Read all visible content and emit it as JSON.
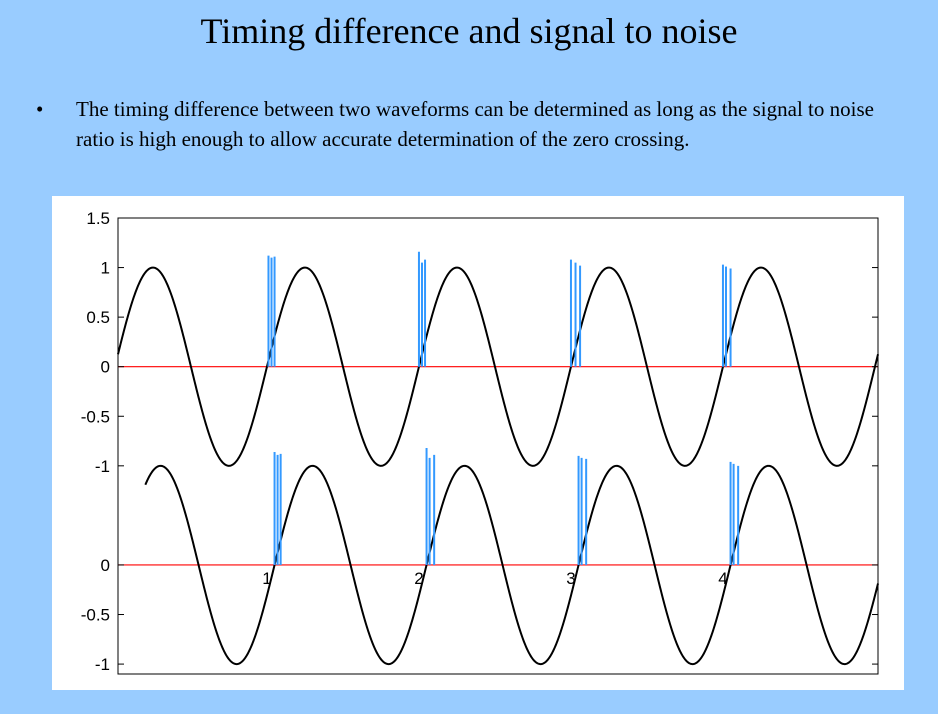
{
  "slide": {
    "title": "Timing difference and signal to noise",
    "bullet": "•",
    "bullet_text": "The timing difference between two waveforms can be determined as long as the signal to noise ratio is high enough to allow accurate determination of the zero crossing."
  },
  "colors": {
    "background": "#99ccff",
    "waveform": "#000000",
    "zero_line": "#ff0000",
    "noise_spikes": "#3399ff"
  },
  "chart_data": {
    "type": "line",
    "title": "",
    "xlabel": "",
    "ylabel": "",
    "grid": false,
    "xlim": [
      -0.98,
      4.02
    ],
    "ylim": [
      -3.1,
      1.5
    ],
    "upper_axis_ticks": [
      {
        "label": "1.5",
        "value": 1.5
      },
      {
        "label": "1",
        "value": 1
      },
      {
        "label": "0.5",
        "value": 0.5
      },
      {
        "label": "0",
        "value": 0
      },
      {
        "label": "-0.5",
        "value": -0.5
      },
      {
        "label": "-1",
        "value": -1
      }
    ],
    "lower_axis_ticks": [
      {
        "label": "0",
        "value": 0
      },
      {
        "label": "-0.5",
        "value": -0.5
      },
      {
        "label": "-1",
        "value": -1
      }
    ],
    "x_tick_labels": [
      {
        "label": "1",
        "value": 0
      },
      {
        "label": "2",
        "value": 1
      },
      {
        "label": "3",
        "value": 2
      },
      {
        "label": "4",
        "value": 3
      }
    ],
    "series": [
      {
        "role": "upper waveform",
        "baseline": 0,
        "amplitude": 1,
        "x_start": -0.98,
        "x_end": 4.02,
        "period": 1,
        "zero_crossings": [
          0,
          1,
          2,
          3,
          4
        ]
      },
      {
        "role": "lower waveform (delayed)",
        "baseline": -2,
        "amplitude": 1,
        "x_start": -0.8,
        "x_end": 4.02,
        "period": 1,
        "time_shift": 0.05,
        "zero_crossings": [
          0.05,
          1.05,
          2.05,
          3.05
        ]
      }
    ],
    "noise_spikes": [
      {
        "baseline": 0,
        "x": [
          0.01,
          0.03,
          0.05
        ],
        "heights": [
          1.12,
          1.1,
          1.11
        ]
      },
      {
        "baseline": 0,
        "x": [
          1.0,
          1.02,
          1.04
        ],
        "heights": [
          1.16,
          1.05,
          1.08
        ]
      },
      {
        "baseline": 0,
        "x": [
          2.0,
          2.03,
          2.06
        ],
        "heights": [
          1.08,
          1.05,
          1.02
        ]
      },
      {
        "baseline": 0,
        "x": [
          3.0,
          3.02,
          3.05
        ],
        "heights": [
          1.03,
          1.01,
          0.99
        ]
      },
      {
        "baseline": -2,
        "x": [
          0.05,
          0.07,
          0.09
        ],
        "heights": [
          1.14,
          1.11,
          1.12
        ]
      },
      {
        "baseline": -2,
        "x": [
          1.05,
          1.07,
          1.1
        ],
        "heights": [
          1.18,
          1.08,
          1.11
        ]
      },
      {
        "baseline": -2,
        "x": [
          2.05,
          2.07,
          2.1
        ],
        "heights": [
          1.1,
          1.08,
          1.07
        ]
      },
      {
        "baseline": -2,
        "x": [
          3.05,
          3.07,
          3.1
        ],
        "heights": [
          1.04,
          1.02,
          1.0
        ]
      }
    ]
  }
}
